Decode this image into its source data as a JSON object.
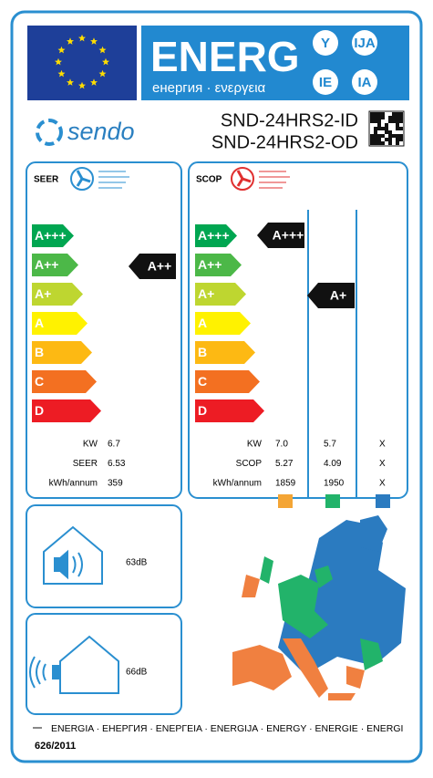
{
  "header": {
    "title": "ENERG",
    "subtitle": "енергия · ενεργεια",
    "languages": [
      "Y",
      "IJA",
      "IE",
      "IA"
    ]
  },
  "brand": "sendo",
  "models": [
    "SND-24HRS2-ID",
    "SND-24HRS2-OD"
  ],
  "cooling": {
    "label": "SEER",
    "classes": [
      "A+++",
      "A++",
      "A+",
      "A",
      "B",
      "C",
      "D"
    ],
    "rating": "A++",
    "rows": [
      {
        "label": "KW",
        "value": "6.7"
      },
      {
        "label": "SEER",
        "value": "6.53"
      },
      {
        "label": "kWh/annum",
        "value": "359"
      }
    ]
  },
  "heating": {
    "label": "SCOP",
    "classes": [
      "A+++",
      "A++",
      "A+",
      "A",
      "B",
      "C",
      "D"
    ],
    "ratings": [
      "A+++",
      "A+"
    ],
    "rows": [
      {
        "label": "KW",
        "values": [
          "7.0",
          "5.7",
          "X"
        ]
      },
      {
        "label": "SCOP",
        "values": [
          "5.27",
          "4.09",
          "X"
        ]
      },
      {
        "label": "kWh/annum",
        "values": [
          "1859",
          "1950",
          "X"
        ]
      }
    ]
  },
  "noise": [
    "63dB",
    "66dB"
  ],
  "footer": {
    "languages": "ENERGIA · ЕНЕРГИЯ · ENEPΓEIA · ENERGIJA · ENERGY · ENERGIE · ENERGI",
    "regulation": "626/2011"
  }
}
